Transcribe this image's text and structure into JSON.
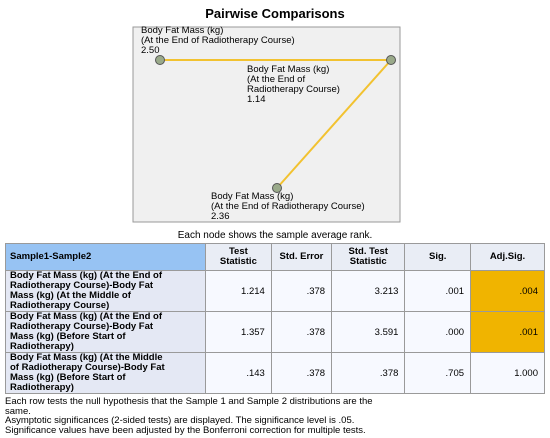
{
  "title": "Pairwise Comparisons",
  "nodes": [
    {
      "label": [
        "Body Fat Mass (kg)",
        "(At the End of Radiotherapy Course)"
      ],
      "rank": "2.50"
    },
    {
      "label": [
        "Body Fat Mass (kg)",
        "(At the End of",
        "Radiotherapy Course)"
      ],
      "rank": "1.14"
    },
    {
      "label": [
        "Body Fat Mass (kg)",
        "(At the End of Radiotherapy Course)"
      ],
      "rank": "2.36"
    }
  ],
  "caption": "Each node shows the sample average rank.",
  "table": {
    "header": [
      "Sample1-Sample2",
      "Test Statistic",
      "Std. Error",
      "Std. Test Statistic",
      "Sig.",
      "Adj.Sig."
    ],
    "rows": [
      [
        [
          "Body Fat Mass (kg) (At the End of",
          "Radiotherapy Course)-Body Fat",
          "Mass (kg) (At the Middle of",
          "Radiotherapy Course)"
        ],
        "1.214",
        ".378",
        "3.213",
        ".001",
        ".004"
      ],
      [
        [
          "Body Fat Mass (kg) (At the End of",
          "Radiotherapy Course)-Body Fat",
          "Mass (kg) (Before Start of",
          "Radiotherapy)"
        ],
        "1.357",
        ".378",
        "3.591",
        ".000",
        ".001"
      ],
      [
        [
          "Body Fat Mass (kg) (At the Middle",
          "of Radiotherapy Course)-Body Fat",
          "Mass (kg) (Before Start of",
          "Radiotherapy)"
        ],
        ".143",
        ".378",
        ".378",
        ".705",
        "1.000"
      ]
    ]
  },
  "footnotes": [
    "Each row tests the null hypothesis that the Sample 1 and Sample 2 distributions are the",
    "same.",
    "Asymptotic significances (2-sided tests) are displayed. The significance level is .05.",
    "Significance values have been adjusted by the Bonferroni correction for multiple tests."
  ]
}
